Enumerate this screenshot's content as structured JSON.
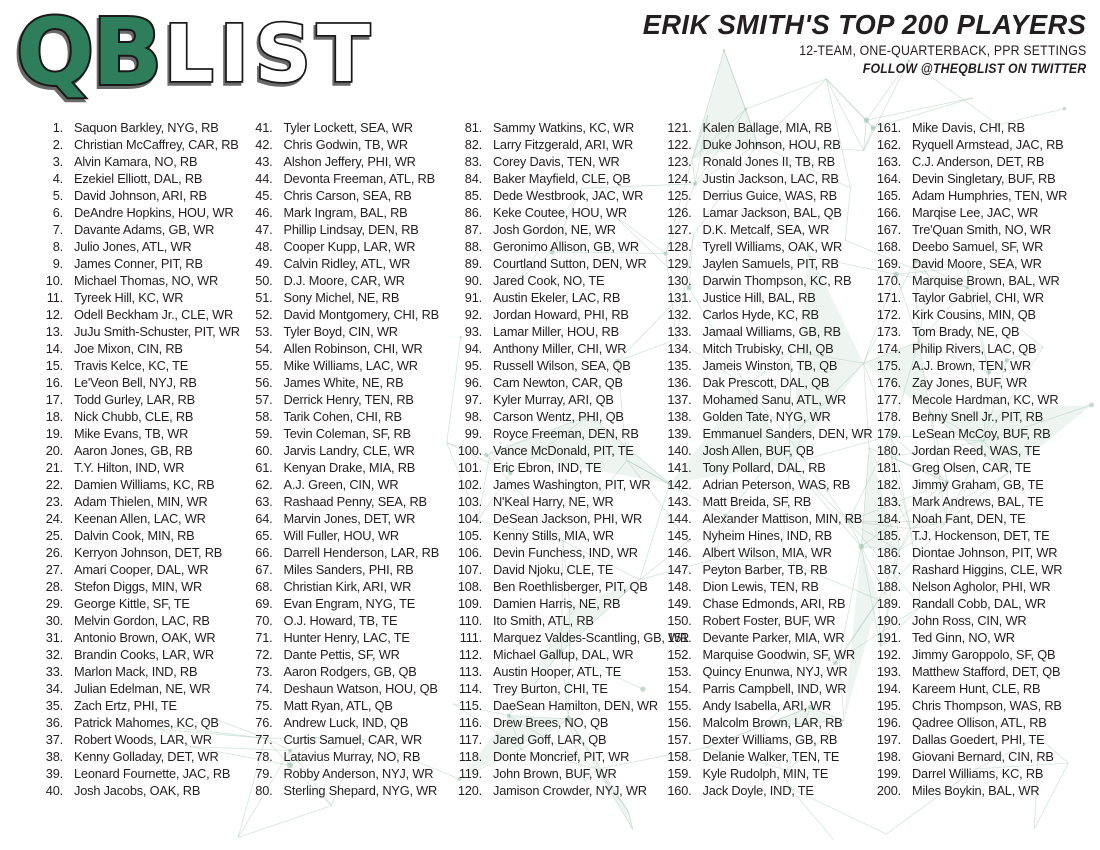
{
  "logo": {
    "qb": "QB",
    "list": "LIST"
  },
  "header": {
    "title": "ERIK SMITH'S TOP 200 PLAYERS",
    "subtitle": "12-TEAM, ONE-QUARTERBACK, PPR SETTINGS",
    "follow": "FOLLOW @THEQBLIST ON TWITTER"
  },
  "colors": {
    "logo_green": "#2E7D5B",
    "logo_outline": "#1a1a1a",
    "logo_list_fill": "#ffffff",
    "text": "#231f20",
    "pattern_line": "#a8cbb8",
    "pattern_fill": "#cfe3d8",
    "pattern_dot": "#9cc4ae"
  },
  "list": {
    "columns": [
      {
        "start": 1,
        "end": 40
      },
      {
        "start": 41,
        "end": 80
      },
      {
        "start": 81,
        "end": 120
      },
      {
        "start": 121,
        "end": 160
      },
      {
        "start": 161,
        "end": 200
      }
    ],
    "players": [
      "Saquon Barkley, NYG, RB",
      "Christian McCaffrey, CAR, RB",
      "Alvin Kamara, NO, RB",
      "Ezekiel Elliott, DAL, RB",
      "David Johnson, ARI, RB",
      "DeAndre Hopkins, HOU, WR",
      "Davante Adams, GB, WR",
      "Julio Jones, ATL, WR",
      "James Conner, PIT, RB",
      "Michael Thomas, NO, WR",
      "Tyreek Hill, KC, WR",
      "Odell Beckham Jr., CLE, WR",
      "JuJu Smith-Schuster, PIT, WR",
      "Joe Mixon, CIN, RB",
      "Travis Kelce, KC, TE",
      "Le'Veon Bell, NYJ, RB",
      "Todd Gurley, LAR, RB",
      "Nick Chubb, CLE, RB",
      "Mike Evans, TB, WR",
      "Aaron Jones, GB, RB",
      "T.Y. Hilton, IND, WR",
      "Damien Williams, KC, RB",
      "Adam Thielen, MIN, WR",
      "Keenan Allen, LAC, WR",
      "Dalvin Cook, MIN, RB",
      "Kerryon Johnson, DET, RB",
      "Amari Cooper, DAL, WR",
      "Stefon Diggs, MIN, WR",
      "George Kittle, SF, TE",
      "Melvin Gordon, LAC, RB",
      "Antonio Brown, OAK, WR",
      "Brandin Cooks, LAR, WR",
      "Marlon Mack, IND, RB",
      "Julian Edelman, NE, WR",
      "Zach Ertz, PHI, TE",
      "Patrick Mahomes, KC, QB",
      "Robert Woods, LAR, WR",
      "Kenny Golladay, DET, WR",
      "Leonard Fournette, JAC, RB",
      "Josh Jacobs, OAK, RB",
      "Tyler Lockett, SEA, WR",
      "Chris Godwin, TB, WR",
      "Alshon Jeffery, PHI, WR",
      "Devonta Freeman, ATL, RB",
      "Chris Carson, SEA, RB",
      "Mark Ingram, BAL, RB",
      "Phillip Lindsay, DEN, RB",
      "Cooper Kupp, LAR, WR",
      "Calvin Ridley, ATL, WR",
      "D.J. Moore, CAR, WR",
      "Sony Michel, NE, RB",
      "David Montgomery, CHI, RB",
      "Tyler Boyd, CIN, WR",
      "Allen Robinson, CHI, WR",
      "Mike Williams, LAC, WR",
      "James White, NE, RB",
      "Derrick Henry, TEN, RB",
      "Tarik Cohen, CHI, RB",
      "Tevin Coleman, SF, RB",
      "Jarvis Landry, CLE, WR",
      "Kenyan Drake, MIA, RB",
      "A.J. Green, CIN, WR",
      "Rashaad Penny, SEA, RB",
      "Marvin Jones, DET, WR",
      "Will Fuller, HOU, WR",
      "Darrell Henderson, LAR, RB",
      "Miles Sanders, PHI, RB",
      "Christian Kirk, ARI, WR",
      "Evan Engram, NYG, TE",
      "O.J. Howard, TB, TE",
      "Hunter Henry, LAC, TE",
      "Dante Pettis, SF, WR",
      "Aaron Rodgers, GB, QB",
      "Deshaun Watson, HOU, QB",
      "Matt Ryan, ATL, QB",
      "Andrew Luck, IND, QB",
      "Curtis Samuel, CAR, WR",
      "Latavius Murray, NO, RB",
      "Robby Anderson, NYJ, WR",
      "Sterling Shepard, NYG, WR",
      "Sammy Watkins, KC, WR",
      "Larry Fitzgerald, ARI, WR",
      "Corey Davis, TEN, WR",
      "Baker Mayfield, CLE, QB",
      "Dede Westbrook, JAC, WR",
      "Keke Coutee, HOU, WR",
      "Josh Gordon, NE, WR",
      "Geronimo Allison, GB, WR",
      "Courtland Sutton, DEN, WR",
      "Jared Cook, NO, TE",
      "Austin Ekeler, LAC, RB",
      "Jordan Howard, PHI, RB",
      "Lamar Miller, HOU, RB",
      "Anthony Miller, CHI, WR",
      "Russell Wilson, SEA, QB",
      "Cam Newton, CAR, QB",
      "Kyler Murray, ARI, QB",
      "Carson Wentz, PHI, QB",
      "Royce Freeman, DEN, RB",
      "Vance McDonald, PIT, TE",
      "Eric Ebron, IND, TE",
      "James Washington, PIT, WR",
      "N'Keal Harry, NE, WR",
      "DeSean Jackson, PHI, WR",
      "Kenny Stills, MIA, WR",
      "Devin Funchess, IND, WR",
      "David Njoku, CLE, TE",
      "Ben Roethlisberger, PIT, QB",
      "Damien Harris, NE, RB",
      "Ito Smith, ATL, RB",
      "Marquez Valdes-Scantling, GB, WR",
      "Michael Gallup, DAL, WR",
      "Austin Hooper, ATL, TE",
      "Trey Burton, CHI, TE",
      "DaeSean Hamilton, DEN, WR",
      "Drew Brees, NO, QB",
      "Jared Goff, LAR, QB",
      "Donte Moncrief, PIT, WR",
      "John Brown, BUF, WR",
      "Jamison Crowder, NYJ, WR",
      "Kalen Ballage, MIA, RB",
      "Duke Johnson, HOU, RB",
      "Ronald Jones II, TB, RB",
      "Justin Jackson, LAC, RB",
      "Derrius Guice, WAS, RB",
      "Lamar Jackson, BAL, QB",
      "D.K. Metcalf, SEA, WR",
      "Tyrell Williams, OAK, WR",
      "Jaylen Samuels, PIT, RB",
      "Darwin Thompson, KC, RB",
      "Justice Hill, BAL, RB",
      "Carlos Hyde, KC, RB",
      "Jamaal Williams, GB, RB",
      "Mitch Trubisky, CHI, QB",
      "Jameis Winston, TB, QB",
      "Dak Prescott, DAL, QB",
      "Mohamed Sanu, ATL, WR",
      "Golden Tate, NYG, WR",
      "Emmanuel Sanders, DEN, WR",
      "Josh Allen, BUF, QB",
      "Tony Pollard, DAL, RB",
      "Adrian Peterson, WAS, RB",
      "Matt Breida, SF, RB",
      "Alexander Mattison, MIN, RB",
      "Nyheim Hines, IND, RB",
      "Albert Wilson, MIA, WR",
      "Peyton Barber, TB, RB",
      "Dion Lewis, TEN, RB",
      "Chase Edmonds, ARI, RB",
      "Robert Foster, BUF, WR",
      "Devante Parker, MIA, WR",
      "Marquise Goodwin, SF, WR",
      "Quincy Enunwa, NYJ, WR",
      "Parris Campbell, IND, WR",
      "Andy Isabella, ARI, WR",
      "Malcolm Brown, LAR, RB",
      "Dexter Williams, GB, RB",
      "Delanie Walker, TEN, TE",
      "Kyle Rudolph, MIN, TE",
      "Jack Doyle, IND, TE",
      "Mike Davis, CHI, RB",
      "Ryquell Armstead, JAC, RB",
      "C.J. Anderson, DET, RB",
      "Devin Singletary, BUF, RB",
      "Adam Humphries, TEN, WR",
      "Marqise Lee, JAC, WR",
      "Tre'Quan Smith, NO, WR",
      "Deebo Samuel, SF, WR",
      "David Moore, SEA, WR",
      "Marquise Brown, BAL, WR",
      "Taylor Gabriel, CHI, WR",
      "Kirk Cousins, MIN, QB",
      "Tom Brady, NE, QB",
      "Philip Rivers, LAC, QB",
      "A.J. Brown, TEN, WR",
      "Zay Jones, BUF, WR",
      "Mecole Hardman, KC, WR",
      "Benny Snell Jr., PIT, RB",
      "LeSean McCoy, BUF, RB",
      "Jordan Reed, WAS, TE",
      "Greg Olsen, CAR, TE",
      "Jimmy Graham, GB, TE",
      "Mark Andrews, BAL, TE",
      "Noah Fant, DEN, TE",
      "T.J. Hockenson, DET, TE",
      "Diontae Johnson, PIT, WR",
      "Rashard Higgins, CLE, WR",
      "Nelson Agholor, PHI, WR",
      "Randall Cobb, DAL, WR",
      "John Ross, CIN, WR",
      "Ted Ginn, NO, WR",
      "Jimmy Garoppolo, SF, QB",
      "Matthew Stafford, DET, QB",
      "Kareem Hunt, CLE, RB",
      "Chris Thompson, WAS, RB",
      "Qadree Ollison, ATL, RB",
      "Dallas Goedert, PHI, TE",
      "Giovani Bernard, CIN, RB",
      "Darrel Williams, KC, RB",
      "Miles Boykin, BAL, WR"
    ]
  }
}
